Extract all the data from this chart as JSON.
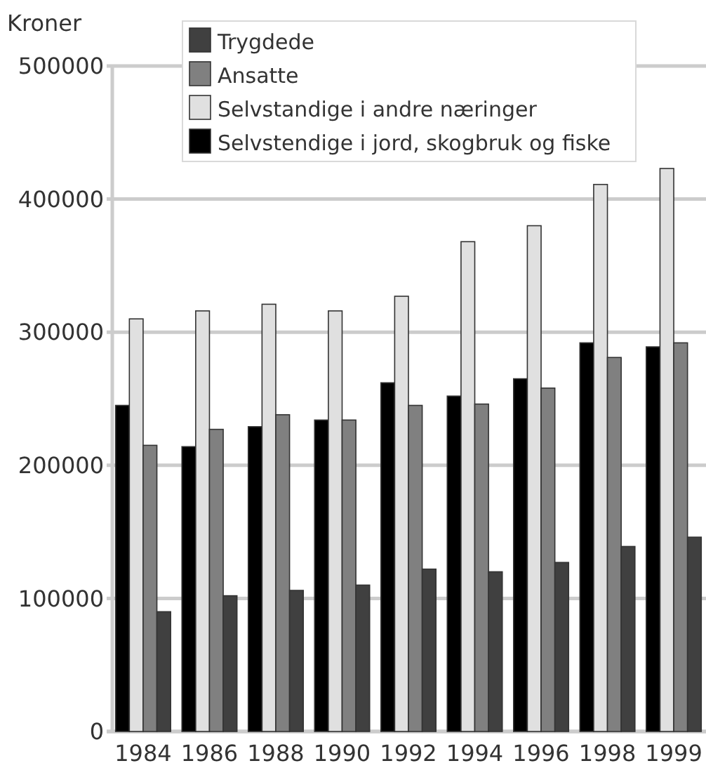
{
  "chart_data": {
    "type": "bar",
    "ylabel": "Kroner",
    "categories": [
      "1984",
      "1986",
      "1988",
      "1990",
      "1992",
      "1994",
      "1996",
      "1998",
      "1999"
    ],
    "series": [
      {
        "name": "Selvstendige i jord, skogbruk og fiske",
        "color": "#000000",
        "values": [
          245000,
          214000,
          229000,
          234000,
          262000,
          252000,
          265000,
          292000,
          289000
        ]
      },
      {
        "name": "Selvstandige i andre næringer",
        "color": "#e0e0e0",
        "values": [
          310000,
          316000,
          321000,
          316000,
          327000,
          368000,
          380000,
          411000,
          423000
        ]
      },
      {
        "name": "Ansatte",
        "color": "#808080",
        "values": [
          215000,
          227000,
          238000,
          234000,
          245000,
          246000,
          258000,
          281000,
          292000
        ]
      },
      {
        "name": "Trygdede",
        "color": "#404040",
        "values": [
          90000,
          102000,
          106000,
          110000,
          122000,
          120000,
          127000,
          139000,
          146000
        ]
      }
    ],
    "ylim": [
      0,
      500000
    ],
    "yticks": [
      0,
      100000,
      200000,
      300000,
      400000,
      500000
    ],
    "grid": "y",
    "legend": "top"
  }
}
